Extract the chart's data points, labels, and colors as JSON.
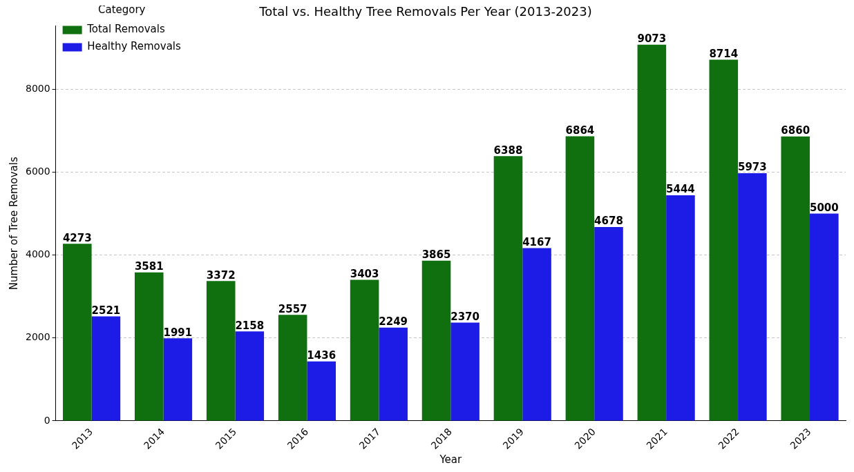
{
  "chart_data": {
    "type": "bar",
    "title": "Total vs. Healthy Tree Removals Per Year (2013-2023)",
    "xlabel": "Year",
    "ylabel": "Number of Tree Removals",
    "legend_title": "Category",
    "categories": [
      "2013",
      "2014",
      "2015",
      "2016",
      "2017",
      "2018",
      "2019",
      "2020",
      "2021",
      "2022",
      "2023"
    ],
    "series": [
      {
        "name": "Total Removals",
        "color": "#107010",
        "values": [
          4273,
          3581,
          3372,
          2557,
          3403,
          3865,
          6388,
          6864,
          9073,
          8714,
          6860
        ]
      },
      {
        "name": "Healthy Removals",
        "color": "#1c1ce6",
        "values": [
          2521,
          1991,
          2158,
          1436,
          2249,
          2370,
          4167,
          4678,
          5444,
          5973,
          5000
        ]
      }
    ],
    "ylim": [
      0,
      9527
    ],
    "yticks": [
      0,
      2000,
      4000,
      6000,
      8000
    ],
    "grid": "y",
    "legend": "top left",
    "data_labels": true
  }
}
